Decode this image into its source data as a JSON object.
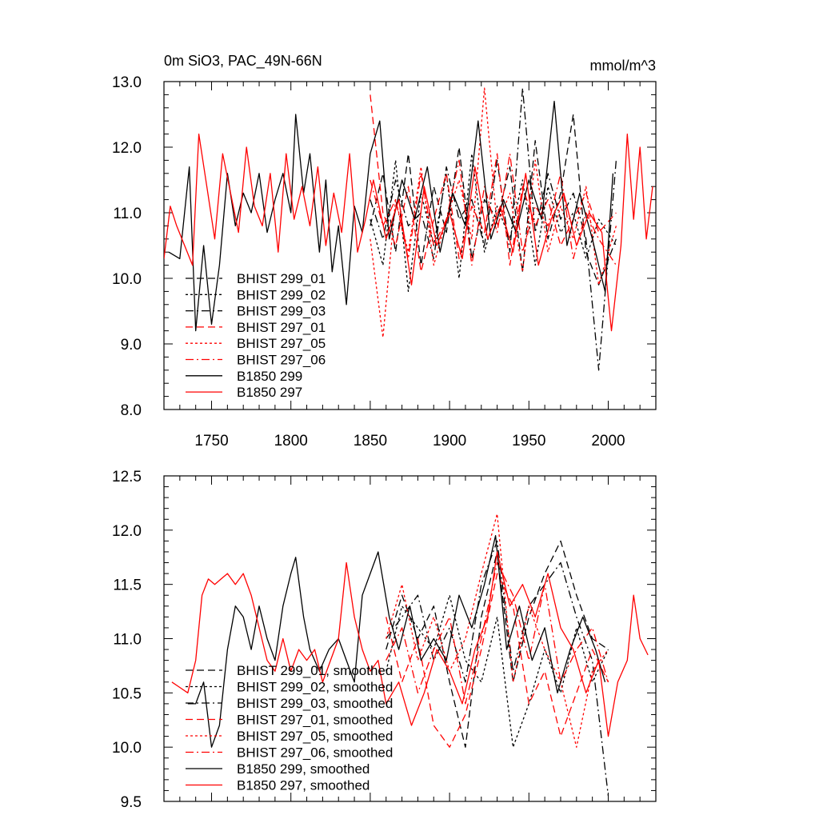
{
  "chart_data": [
    {
      "type": "line",
      "title": "0m SiO3, PAC_49N-66N",
      "units": "mmol/m^3",
      "xlim": [
        1720,
        2030
      ],
      "ylim": [
        8.0,
        13.0
      ],
      "x_ticks": [
        1750,
        1800,
        1850,
        1900,
        1950,
        2000
      ],
      "x_tick_labels": [
        "1750",
        "1800",
        "1850",
        "1900",
        "1950",
        "2000"
      ],
      "y_ticks": [
        8.0,
        9.0,
        10.0,
        11.0,
        12.0,
        13.0
      ],
      "y_tick_labels": [
        "8.0",
        "9.0",
        "10.0",
        "11.0",
        "12.0",
        "13.0"
      ],
      "legend_position": "lower-left",
      "series": [
        {
          "name": "BHIST 299_01",
          "color": "#000000",
          "dash": "dash",
          "x": [
            1850,
            1858,
            1866,
            1874,
            1882,
            1890,
            1898,
            1906,
            1914,
            1922,
            1930,
            1938,
            1946,
            1954,
            1962,
            1970,
            1978,
            1986,
            1994,
            2005
          ],
          "values": [
            10.8,
            11.6,
            10.4,
            11.9,
            10.2,
            11.4,
            10.7,
            12.0,
            10.3,
            11.2,
            10.9,
            11.7,
            10.1,
            12.1,
            10.6,
            11.3,
            12.5,
            10.4,
            9.9,
            10.6
          ]
        },
        {
          "name": "BHIST 299_02",
          "color": "#000000",
          "dash": "dot",
          "x": [
            1850,
            1858,
            1866,
            1874,
            1882,
            1890,
            1898,
            1906,
            1914,
            1922,
            1930,
            1938,
            1946,
            1954,
            1962,
            1970,
            1978,
            1986,
            1994,
            2005
          ],
          "values": [
            10.9,
            10.2,
            11.8,
            9.8,
            11.3,
            10.5,
            11.6,
            10.0,
            11.9,
            10.4,
            11.1,
            10.6,
            11.5,
            10.2,
            11.4,
            10.7,
            11.0,
            10.3,
            10.9,
            10.5
          ]
        },
        {
          "name": "BHIST 299_03",
          "color": "#000000",
          "dash": "dashdot",
          "x": [
            1850,
            1858,
            1866,
            1874,
            1882,
            1890,
            1898,
            1906,
            1914,
            1922,
            1930,
            1938,
            1946,
            1954,
            1962,
            1970,
            1978,
            1986,
            1994,
            2005
          ],
          "values": [
            11.2,
            10.6,
            11.5,
            10.8,
            11.0,
            10.3,
            11.7,
            10.9,
            11.2,
            10.5,
            11.8,
            10.4,
            12.9,
            10.7,
            11.6,
            10.9,
            11.3,
            10.6,
            8.6,
            11.8
          ]
        },
        {
          "name": "BHIST 297_01",
          "color": "#ff0000",
          "dash": "dash",
          "x": [
            1850,
            1858,
            1866,
            1874,
            1882,
            1890,
            1898,
            1906,
            1914,
            1922,
            1930,
            1938,
            1946,
            1954,
            1962,
            1970,
            1978,
            1986,
            1994,
            2005
          ],
          "values": [
            12.8,
            11.0,
            10.5,
            11.4,
            10.1,
            10.9,
            11.6,
            10.3,
            11.1,
            10.7,
            11.9,
            10.2,
            11.4,
            10.8,
            11.2,
            10.5,
            10.9,
            11.3,
            10.7,
            11.0
          ]
        },
        {
          "name": "BHIST 297_05",
          "color": "#ff0000",
          "dash": "dot",
          "x": [
            1850,
            1858,
            1866,
            1874,
            1882,
            1890,
            1898,
            1906,
            1914,
            1922,
            1930,
            1938,
            1946,
            1954,
            1962,
            1970,
            1978,
            1986,
            1994,
            2005
          ],
          "values": [
            10.6,
            9.1,
            11.2,
            10.4,
            11.7,
            10.2,
            10.9,
            11.5,
            10.6,
            12.9,
            10.8,
            11.3,
            10.1,
            11.8,
            10.4,
            11.1,
            10.6,
            11.4,
            9.9,
            10.8
          ]
        },
        {
          "name": "BHIST 297_06",
          "color": "#ff0000",
          "dash": "dashdot",
          "x": [
            1850,
            1858,
            1866,
            1874,
            1882,
            1890,
            1898,
            1906,
            1914,
            1922,
            1930,
            1938,
            1946,
            1954,
            1962,
            1970,
            1978,
            1986,
            1994,
            2005
          ],
          "values": [
            11.5,
            10.8,
            11.2,
            10.3,
            11.6,
            10.5,
            10.9,
            11.8,
            10.2,
            11.4,
            10.7,
            11.9,
            10.4,
            11.1,
            10.8,
            11.6,
            10.3,
            11.0,
            10.6,
            10.2
          ]
        },
        {
          "name": "B1850 299",
          "color": "#000000",
          "dash": "solid",
          "x": [
            1723,
            1730,
            1736,
            1740,
            1745,
            1750,
            1755,
            1760,
            1765,
            1770,
            1775,
            1780,
            1785,
            1790,
            1795,
            1800,
            1803,
            1808,
            1812,
            1818,
            1822,
            1826,
            1830,
            1835,
            1840,
            1845,
            1850,
            1856,
            1862,
            1870,
            1878,
            1886,
            1894,
            1902,
            1910,
            1918,
            1926,
            1934,
            1942,
            1950,
            1958,
            1966,
            1974,
            1982,
            1990,
            1998,
            2003
          ],
          "values": [
            10.4,
            10.3,
            11.7,
            9.2,
            10.5,
            9.3,
            10.2,
            11.6,
            10.8,
            11.3,
            11.0,
            11.6,
            10.7,
            11.2,
            11.6,
            11.0,
            12.5,
            11.3,
            11.9,
            10.4,
            11.5,
            10.1,
            10.8,
            9.6,
            11.1,
            10.7,
            11.9,
            12.4,
            10.6,
            11.5,
            10.9,
            11.7,
            10.4,
            11.3,
            10.8,
            12.4,
            10.6,
            11.2,
            10.7,
            11.5,
            10.9,
            12.7,
            10.5,
            11.3,
            10.6,
            9.8,
            11.6
          ]
        },
        {
          "name": "B1850 297",
          "color": "#ff0000",
          "dash": "solid",
          "x": [
            1720,
            1724,
            1728,
            1733,
            1738,
            1742,
            1747,
            1752,
            1757,
            1762,
            1767,
            1772,
            1777,
            1782,
            1787,
            1792,
            1797,
            1802,
            1807,
            1812,
            1817,
            1822,
            1827,
            1832,
            1837,
            1842,
            1847,
            1852,
            1860,
            1868,
            1876,
            1884,
            1892,
            1900,
            1908,
            1916,
            1924,
            1932,
            1940,
            1948,
            1956,
            1964,
            1972,
            1980,
            1988,
            1996,
            2002,
            2008,
            2012,
            2016,
            2020,
            2024,
            2028
          ],
          "values": [
            10.3,
            11.1,
            10.8,
            10.5,
            10.2,
            12.2,
            11.4,
            10.6,
            11.9,
            11.3,
            10.7,
            12.0,
            11.1,
            10.8,
            11.6,
            10.4,
            11.9,
            10.9,
            11.4,
            10.8,
            11.7,
            10.5,
            11.3,
            10.7,
            11.9,
            10.4,
            10.9,
            11.5,
            10.6,
            11.2,
            9.9,
            11.4,
            10.5,
            11.0,
            10.3,
            11.7,
            10.6,
            11.1,
            10.4,
            11.6,
            10.2,
            10.9,
            11.3,
            10.5,
            11.0,
            10.7,
            9.2,
            10.5,
            12.2,
            10.9,
            12.0,
            10.6,
            11.4
          ]
        }
      ]
    },
    {
      "type": "line",
      "title": "",
      "xlim": [
        1720,
        2030
      ],
      "ylim": [
        9.5,
        12.5
      ],
      "x_ticks": [
        1750,
        1800,
        1850,
        1900,
        1950,
        2000
      ],
      "y_ticks": [
        9.5,
        10.0,
        10.5,
        11.0,
        11.5,
        12.0,
        12.5
      ],
      "y_tick_labels": [
        "9.5",
        "10.0",
        "10.5",
        "11.0",
        "11.5",
        "12.0",
        "12.5"
      ],
      "legend_position": "lower-left",
      "series": [
        {
          "name": "BHIST 299_01, smoothed",
          "color": "#000000",
          "dash": "dash",
          "x": [
            1860,
            1870,
            1880,
            1890,
            1900,
            1910,
            1920,
            1930,
            1940,
            1950,
            1960,
            1970,
            1980,
            1990,
            2000
          ],
          "values": [
            10.9,
            11.4,
            11.0,
            11.3,
            10.6,
            10.0,
            11.2,
            11.8,
            10.6,
            11.2,
            11.6,
            11.9,
            11.4,
            11.0,
            10.9
          ]
        },
        {
          "name": "BHIST 299_02, smoothed",
          "color": "#000000",
          "dash": "dot",
          "x": [
            1860,
            1870,
            1880,
            1890,
            1900,
            1910,
            1920,
            1930,
            1940,
            1950,
            1960,
            1970,
            1980,
            1990,
            2000
          ],
          "values": [
            10.7,
            11.3,
            11.1,
            10.9,
            11.4,
            10.8,
            10.6,
            11.2,
            10.0,
            10.4,
            10.9,
            10.5,
            11.1,
            10.6,
            10.9
          ]
        },
        {
          "name": "BHIST 299_03, smoothed",
          "color": "#000000",
          "dash": "dashdot",
          "x": [
            1860,
            1870,
            1880,
            1890,
            1900,
            1910,
            1920,
            1930,
            1940,
            1950,
            1960,
            1970,
            1980,
            1990,
            2000
          ],
          "values": [
            11.0,
            11.2,
            11.4,
            10.8,
            11.1,
            10.6,
            11.5,
            11.9,
            10.7,
            11.3,
            11.5,
            11.7,
            11.2,
            10.8,
            9.55
          ]
        },
        {
          "name": "BHIST 297_01, smoothed",
          "color": "#ff0000",
          "dash": "dash",
          "x": [
            1860,
            1870,
            1880,
            1890,
            1900,
            1910,
            1920,
            1930,
            1940,
            1950,
            1960,
            1970,
            1980,
            1990,
            2000
          ],
          "values": [
            11.2,
            10.6,
            11.0,
            10.2,
            10.0,
            10.3,
            10.9,
            11.6,
            11.3,
            10.4,
            10.7,
            10.1,
            10.5,
            10.9,
            10.6
          ]
        },
        {
          "name": "BHIST 297_05, smoothed",
          "color": "#ff0000",
          "dash": "dot",
          "x": [
            1860,
            1870,
            1880,
            1890,
            1900,
            1910,
            1920,
            1930,
            1940,
            1950,
            1960,
            1970,
            1980,
            1990,
            2000
          ],
          "values": [
            11.0,
            11.5,
            10.8,
            11.2,
            10.7,
            11.0,
            11.6,
            12.15,
            10.6,
            11.3,
            10.9,
            10.6,
            10.0,
            10.7,
            10.9
          ]
        },
        {
          "name": "BHIST 297_06, smoothed",
          "color": "#ff0000",
          "dash": "dashdot",
          "x": [
            1860,
            1870,
            1880,
            1890,
            1900,
            1910,
            1920,
            1930,
            1940,
            1950,
            1960,
            1970,
            1980,
            1990,
            2000
          ],
          "values": [
            10.8,
            11.1,
            10.5,
            10.9,
            11.2,
            10.4,
            11.0,
            11.7,
            11.4,
            10.8,
            11.5,
            10.6,
            10.9,
            11.1,
            10.6
          ]
        },
        {
          "name": "B1850 299, smoothed",
          "color": "#000000",
          "dash": "solid",
          "x": [
            1735,
            1740,
            1745,
            1750,
            1755,
            1760,
            1765,
            1770,
            1775,
            1780,
            1785,
            1790,
            1795,
            1800,
            1803,
            1808,
            1812,
            1818,
            1824,
            1830,
            1835,
            1840,
            1845,
            1850,
            1855,
            1862,
            1868,
            1875,
            1882,
            1890,
            1898,
            1906,
            1914,
            1922,
            1929,
            1936,
            1944,
            1952,
            1960,
            1968,
            1976,
            1984,
            1992,
            1998
          ],
          "values": [
            10.4,
            10.4,
            10.6,
            10.0,
            10.2,
            10.9,
            11.3,
            11.2,
            10.9,
            11.3,
            11.0,
            10.8,
            11.3,
            11.6,
            11.75,
            11.2,
            10.9,
            10.7,
            10.9,
            11.0,
            10.8,
            10.6,
            11.4,
            11.6,
            11.8,
            11.2,
            10.9,
            11.3,
            10.8,
            11.0,
            10.8,
            11.4,
            11.1,
            11.5,
            11.95,
            10.9,
            11.3,
            10.8,
            11.1,
            10.5,
            10.9,
            11.2,
            10.9,
            10.6
          ]
        },
        {
          "name": "B1850 297, smoothed",
          "color": "#ff0000",
          "dash": "solid",
          "x": [
            1725,
            1730,
            1735,
            1740,
            1744,
            1748,
            1752,
            1756,
            1760,
            1765,
            1770,
            1775,
            1780,
            1785,
            1790,
            1795,
            1800,
            1805,
            1810,
            1815,
            1820,
            1825,
            1830,
            1835,
            1840,
            1845,
            1850,
            1855,
            1860,
            1868,
            1876,
            1884,
            1892,
            1900,
            1908,
            1916,
            1924,
            1930,
            1938,
            1946,
            1954,
            1962,
            1970,
            1978,
            1986,
            1994,
            2000,
            2006,
            2012,
            2016,
            2020,
            2025
          ],
          "values": [
            10.6,
            10.55,
            10.5,
            10.8,
            11.4,
            11.55,
            11.5,
            11.55,
            11.6,
            11.5,
            11.6,
            11.4,
            11.1,
            10.8,
            10.7,
            11.0,
            10.7,
            10.9,
            10.8,
            10.9,
            10.6,
            10.8,
            11.0,
            11.7,
            11.2,
            10.9,
            10.7,
            10.8,
            10.4,
            10.6,
            10.2,
            10.5,
            10.9,
            10.7,
            10.4,
            10.9,
            11.2,
            11.8,
            11.3,
            11.5,
            11.2,
            11.6,
            11.1,
            10.9,
            10.5,
            10.8,
            10.1,
            10.6,
            10.8,
            11.4,
            11.0,
            10.85
          ]
        }
      ]
    }
  ]
}
